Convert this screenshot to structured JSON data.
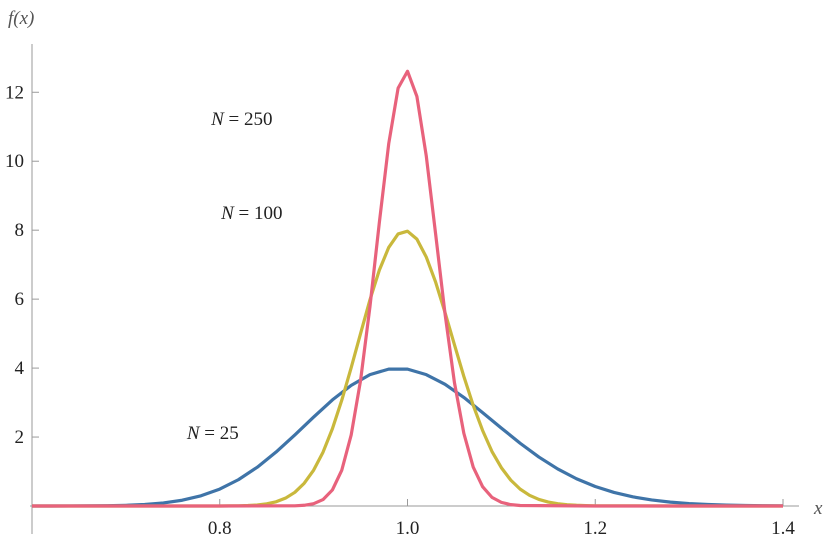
{
  "chart_data": {
    "type": "line",
    "xlabel": "x",
    "ylabel": "f(x)",
    "xlim": [
      0.6,
      1.4
    ],
    "ylim": [
      0,
      13.4
    ],
    "xticks": [
      0.8,
      {
        "value": 1,
        "label": "1.0"
      },
      1.2,
      1.4
    ],
    "yticks": [
      2,
      4,
      6,
      8,
      10,
      12
    ],
    "grid": false,
    "series": [
      {
        "name": "N = 25",
        "color": "#3f74a8",
        "x": [
          0.6,
          0.62,
          0.64,
          0.66,
          0.68,
          0.7,
          0.72,
          0.74,
          0.76,
          0.78,
          0.8,
          0.82,
          0.84,
          0.86,
          0.88,
          0.9,
          0.92,
          0.94,
          0.96,
          0.98,
          1.0,
          1.02,
          1.04,
          1.06,
          1.08,
          1.1,
          1.12,
          1.14,
          1.16,
          1.18,
          1.2,
          1.22,
          1.24,
          1.26,
          1.28,
          1.3,
          1.32,
          1.34,
          1.36,
          1.38,
          1.4
        ],
        "values": [
          0.0001,
          0.0004,
          0.0011,
          0.0032,
          0.0083,
          0.0196,
          0.043,
          0.088,
          0.167,
          0.296,
          0.491,
          0.765,
          1.125,
          1.565,
          2.062,
          2.58,
          3.077,
          3.499,
          3.81,
          3.97,
          3.97,
          3.81,
          3.53,
          3.15,
          2.71,
          2.26,
          1.82,
          1.42,
          1.075,
          0.79,
          0.565,
          0.393,
          0.266,
          0.175,
          0.113,
          0.071,
          0.043,
          0.026,
          0.015,
          0.0088,
          0.005
        ]
      },
      {
        "name": "N = 100",
        "color": "#c9b83c",
        "x": [
          0.6,
          0.7,
          0.8,
          0.81,
          0.82,
          0.83,
          0.84,
          0.85,
          0.86,
          0.87,
          0.88,
          0.89,
          0.9,
          0.91,
          0.92,
          0.93,
          0.94,
          0.95,
          0.96,
          0.97,
          0.98,
          0.99,
          1.0,
          1.01,
          1.02,
          1.03,
          1.04,
          1.05,
          1.06,
          1.07,
          1.08,
          1.09,
          1.1,
          1.11,
          1.12,
          1.13,
          1.14,
          1.15,
          1.16,
          1.17,
          1.18,
          1.19,
          1.2,
          1.3,
          1.4
        ],
        "values": [
          0,
          0,
          0.001,
          0.0025,
          0.0061,
          0.014,
          0.03,
          0.063,
          0.122,
          0.227,
          0.397,
          0.66,
          1.04,
          1.56,
          2.24,
          3.07,
          4.01,
          5.0,
          5.98,
          6.84,
          7.5,
          7.89,
          7.97,
          7.74,
          7.22,
          6.49,
          5.61,
          4.68,
          3.76,
          2.92,
          2.19,
          1.58,
          1.11,
          0.75,
          0.49,
          0.31,
          0.19,
          0.115,
          0.067,
          0.038,
          0.021,
          0.011,
          0.0057,
          0,
          0
        ]
      },
      {
        "name": "N = 250",
        "color": "#e8627c",
        "x": [
          0.6,
          0.8,
          0.88,
          0.89,
          0.9,
          0.91,
          0.92,
          0.93,
          0.94,
          0.95,
          0.96,
          0.97,
          0.98,
          0.99,
          1.0,
          1.01,
          1.02,
          1.03,
          1.04,
          1.05,
          1.06,
          1.07,
          1.08,
          1.09,
          1.1,
          1.11,
          1.12,
          1.2,
          1.4
        ],
        "values": [
          0,
          0,
          0.0057,
          0.021,
          0.066,
          0.186,
          0.466,
          1.04,
          2.06,
          3.64,
          5.78,
          8.22,
          10.51,
          12.12,
          12.61,
          11.88,
          10.15,
          7.88,
          5.57,
          3.58,
          2.11,
          1.13,
          0.56,
          0.25,
          0.105,
          0.04,
          0.014,
          0,
          0
        ]
      }
    ]
  }
}
